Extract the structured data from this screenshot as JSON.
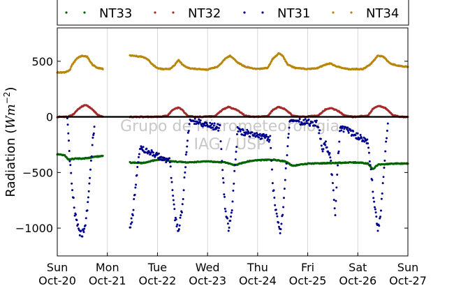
{
  "chart_data": {
    "type": "scatter",
    "xlabel": "",
    "ylabel": "Radiation (Wm⁻²)",
    "ylabel_parts": {
      "text": "Radiation (",
      "math": "Wm",
      "sup": "−2",
      "close": ")"
    },
    "xlim": [
      0,
      7
    ],
    "ylim": [
      -1250,
      800
    ],
    "grid": true,
    "legend_position": "top",
    "watermark": {
      "line1": "Grupo de Micrometeorologia",
      "line2": "IAG / USP"
    },
    "x_ticks": [
      {
        "x": 0,
        "day": "Sun",
        "date": "Oct-20"
      },
      {
        "x": 1,
        "day": "Mon",
        "date": "Oct-21"
      },
      {
        "x": 2,
        "day": "Tue",
        "date": "Oct-22"
      },
      {
        "x": 3,
        "day": "Wed",
        "date": "Oct-23"
      },
      {
        "x": 4,
        "day": "Thu",
        "date": "Oct-24"
      },
      {
        "x": 5,
        "day": "Fri",
        "date": "Oct-25"
      },
      {
        "x": 6,
        "day": "Sat",
        "date": "Oct-26"
      },
      {
        "x": 7,
        "day": "Sun",
        "date": "Oct-27"
      }
    ],
    "y_ticks": [
      {
        "value": 500,
        "label": "500"
      },
      {
        "value": 0,
        "label": "0"
      },
      {
        "value": -500,
        "label": "−500"
      },
      {
        "value": -1000,
        "label": "−1000"
      }
    ],
    "zero_line": 0,
    "gap": [
      0.92,
      1.45
    ],
    "series": [
      {
        "name": "NT33",
        "color": "#006400",
        "points": [
          [
            0,
            -335
          ],
          [
            0.15,
            -345
          ],
          [
            0.22,
            -385
          ],
          [
            0.35,
            -375
          ],
          [
            0.5,
            -375
          ],
          [
            0.62,
            -370
          ],
          [
            0.75,
            -360
          ],
          [
            0.92,
            -350
          ],
          [
            1.45,
            -410
          ],
          [
            1.7,
            -415
          ],
          [
            1.9,
            -395
          ],
          [
            2.05,
            -380
          ],
          [
            2.3,
            -400
          ],
          [
            2.6,
            -410
          ],
          [
            3.0,
            -400
          ],
          [
            3.35,
            -410
          ],
          [
            3.55,
            -435
          ],
          [
            3.8,
            -400
          ],
          [
            4.0,
            -390
          ],
          [
            4.3,
            -385
          ],
          [
            4.55,
            -400
          ],
          [
            4.7,
            -440
          ],
          [
            5.0,
            -420
          ],
          [
            5.5,
            -415
          ],
          [
            5.8,
            -410
          ],
          [
            6.0,
            -410
          ],
          [
            6.2,
            -420
          ],
          [
            6.3,
            -470
          ],
          [
            6.4,
            -430
          ],
          [
            6.7,
            -420
          ],
          [
            7.0,
            -420
          ]
        ]
      },
      {
        "name": "NT32",
        "color": "#a52a2a",
        "points": [
          [
            0,
            0
          ],
          [
            0.2,
            0
          ],
          [
            0.3,
            15
          ],
          [
            0.4,
            60
          ],
          [
            0.5,
            95
          ],
          [
            0.55,
            105
          ],
          [
            0.6,
            100
          ],
          [
            0.7,
            70
          ],
          [
            0.8,
            20
          ],
          [
            0.92,
            0
          ],
          [
            1.45,
            0
          ],
          [
            2.0,
            0
          ],
          [
            2.2,
            10
          ],
          [
            2.3,
            60
          ],
          [
            2.42,
            85
          ],
          [
            2.5,
            60
          ],
          [
            2.6,
            10
          ],
          [
            2.75,
            0
          ],
          [
            3.15,
            5
          ],
          [
            3.3,
            65
          ],
          [
            3.42,
            90
          ],
          [
            3.6,
            60
          ],
          [
            3.75,
            10
          ],
          [
            3.9,
            0
          ],
          [
            4.2,
            5
          ],
          [
            4.3,
            60
          ],
          [
            4.42,
            90
          ],
          [
            4.55,
            70
          ],
          [
            4.7,
            10
          ],
          [
            4.85,
            0
          ],
          [
            5.2,
            10
          ],
          [
            5.35,
            65
          ],
          [
            5.45,
            80
          ],
          [
            5.6,
            55
          ],
          [
            5.75,
            10
          ],
          [
            5.9,
            0
          ],
          [
            6.2,
            10
          ],
          [
            6.3,
            70
          ],
          [
            6.42,
            100
          ],
          [
            6.55,
            80
          ],
          [
            6.7,
            15
          ],
          [
            6.85,
            0
          ],
          [
            7.0,
            0
          ]
        ]
      },
      {
        "name": "NT31",
        "color": "#00008b",
        "points": [
          [
            0.2,
            -10
          ],
          [
            0.22,
            -120
          ],
          [
            0.25,
            -370
          ],
          [
            0.3,
            -640
          ],
          [
            0.35,
            -860
          ],
          [
            0.4,
            -960
          ],
          [
            0.45,
            -1035
          ],
          [
            0.5,
            -1050
          ],
          [
            0.55,
            -1000
          ],
          [
            0.6,
            -830
          ],
          [
            0.65,
            -560
          ],
          [
            0.7,
            -260
          ],
          [
            0.75,
            -40
          ],
          [
            1.45,
            -1000
          ],
          [
            1.5,
            -900
          ],
          [
            1.55,
            -680
          ],
          [
            1.6,
            -470
          ],
          [
            1.65,
            -280
          ],
          [
            2.25,
            -400
          ],
          [
            2.3,
            -650
          ],
          [
            2.35,
            -900
          ],
          [
            2.42,
            -1030
          ],
          [
            2.5,
            -800
          ],
          [
            2.55,
            -480
          ],
          [
            2.6,
            -200
          ],
          [
            2.65,
            -30
          ],
          [
            3.25,
            -100
          ],
          [
            3.3,
            -500
          ],
          [
            3.35,
            -800
          ],
          [
            3.42,
            -1010
          ],
          [
            3.5,
            -780
          ],
          [
            3.55,
            -420
          ],
          [
            3.6,
            -120
          ],
          [
            4.25,
            -200
          ],
          [
            4.3,
            -600
          ],
          [
            4.38,
            -900
          ],
          [
            4.45,
            -1020
          ],
          [
            4.5,
            -880
          ],
          [
            4.55,
            -560
          ],
          [
            4.6,
            -240
          ],
          [
            4.65,
            -30
          ],
          [
            5.2,
            -60
          ],
          [
            5.25,
            -180
          ],
          [
            5.3,
            -290
          ],
          [
            5.35,
            -230
          ],
          [
            5.45,
            -360
          ],
          [
            5.5,
            -610
          ],
          [
            5.55,
            -890
          ],
          [
            5.6,
            -420
          ],
          [
            5.65,
            -90
          ],
          [
            6.2,
            -220
          ],
          [
            6.25,
            -430
          ],
          [
            6.3,
            -650
          ],
          [
            6.35,
            -850
          ],
          [
            6.4,
            -1000
          ],
          [
            6.45,
            -900
          ],
          [
            6.5,
            -620
          ],
          [
            6.55,
            -300
          ],
          [
            6.6,
            -60
          ]
        ]
      },
      {
        "name": "NT34",
        "color": "#b8860b",
        "points": [
          [
            0,
            400
          ],
          [
            0.15,
            400
          ],
          [
            0.25,
            420
          ],
          [
            0.3,
            470
          ],
          [
            0.4,
            530
          ],
          [
            0.5,
            550
          ],
          [
            0.6,
            540
          ],
          [
            0.7,
            470
          ],
          [
            0.8,
            440
          ],
          [
            0.92,
            430
          ],
          [
            1.45,
            550
          ],
          [
            1.6,
            545
          ],
          [
            1.7,
            540
          ],
          [
            1.8,
            520
          ],
          [
            1.9,
            470
          ],
          [
            2.0,
            440
          ],
          [
            2.1,
            430
          ],
          [
            2.25,
            430
          ],
          [
            2.35,
            470
          ],
          [
            2.42,
            510
          ],
          [
            2.5,
            470
          ],
          [
            2.6,
            440
          ],
          [
            2.8,
            430
          ],
          [
            3.0,
            425
          ],
          [
            3.2,
            450
          ],
          [
            3.35,
            520
          ],
          [
            3.45,
            550
          ],
          [
            3.6,
            490
          ],
          [
            3.75,
            450
          ],
          [
            4.0,
            430
          ],
          [
            4.2,
            440
          ],
          [
            4.3,
            520
          ],
          [
            4.42,
            570
          ],
          [
            4.5,
            550
          ],
          [
            4.6,
            470
          ],
          [
            4.75,
            440
          ],
          [
            5.0,
            430
          ],
          [
            5.2,
            440
          ],
          [
            5.35,
            470
          ],
          [
            5.45,
            480
          ],
          [
            5.6,
            450
          ],
          [
            5.8,
            430
          ],
          [
            6.1,
            430
          ],
          [
            6.25,
            470
          ],
          [
            6.4,
            550
          ],
          [
            6.5,
            545
          ],
          [
            6.65,
            480
          ],
          [
            6.8,
            460
          ],
          [
            7.0,
            450
          ]
        ]
      }
    ]
  }
}
